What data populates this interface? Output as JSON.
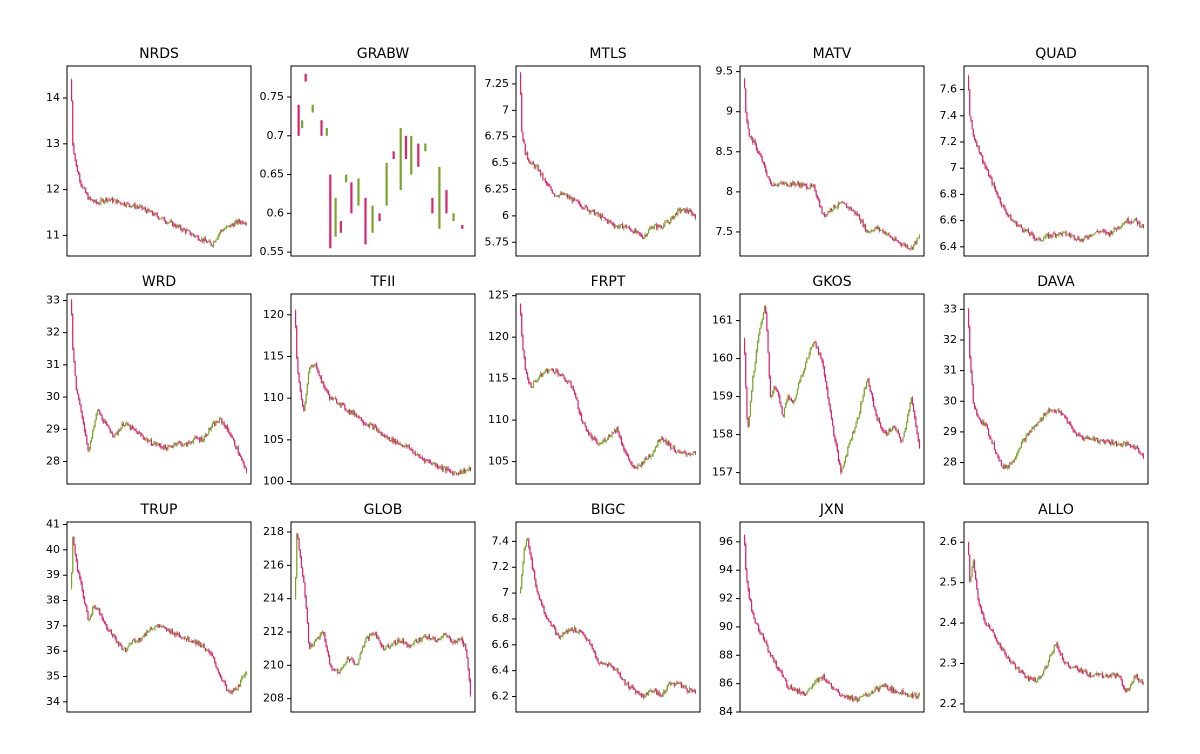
{
  "colors": {
    "up": "#7aa32c",
    "down": "#d6246e",
    "frame": "#000000",
    "background": "#ffffff"
  },
  "chart_data": [
    {
      "type": "candlestick",
      "title": "NRDS",
      "ylim": [
        10.55,
        14.7
      ],
      "yticks": [
        11,
        12,
        13,
        14
      ],
      "series": [
        {
          "x": [
            0,
            0.01,
            0.03,
            0.06,
            0.1,
            0.15,
            0.2,
            0.3,
            0.4,
            0.5,
            0.6,
            0.7,
            0.75,
            0.8,
            0.85,
            0.9,
            0.95,
            1.0
          ],
          "y": [
            14.4,
            13.0,
            12.5,
            12.1,
            11.8,
            11.7,
            11.8,
            11.7,
            11.6,
            11.4,
            11.2,
            11.0,
            10.9,
            10.8,
            11.1,
            11.2,
            11.3,
            11.3
          ]
        }
      ]
    },
    {
      "type": "candlestick",
      "title": "GRABW",
      "ylim": [
        0.545,
        0.79
      ],
      "yticks": [
        0.55,
        0.6,
        0.65,
        0.7,
        0.75
      ],
      "segments": [
        [
          0.02,
          0.7,
          0.74
        ],
        [
          0.04,
          0.71,
          0.72
        ],
        [
          0.06,
          0.77,
          0.78
        ],
        [
          0.1,
          0.73,
          0.74
        ],
        [
          0.15,
          0.7,
          0.72
        ],
        [
          0.18,
          0.7,
          0.71
        ],
        [
          0.2,
          0.555,
          0.65
        ],
        [
          0.23,
          0.57,
          0.62
        ],
        [
          0.26,
          0.575,
          0.59
        ],
        [
          0.29,
          0.64,
          0.65
        ],
        [
          0.32,
          0.6,
          0.64
        ],
        [
          0.36,
          0.61,
          0.645
        ],
        [
          0.4,
          0.56,
          0.62
        ],
        [
          0.44,
          0.575,
          0.61
        ],
        [
          0.48,
          0.59,
          0.6
        ],
        [
          0.52,
          0.61,
          0.665
        ],
        [
          0.56,
          0.67,
          0.68
        ],
        [
          0.6,
          0.63,
          0.71
        ],
        [
          0.63,
          0.67,
          0.7
        ],
        [
          0.66,
          0.65,
          0.7
        ],
        [
          0.7,
          0.66,
          0.69
        ],
        [
          0.74,
          0.68,
          0.69
        ],
        [
          0.78,
          0.6,
          0.62
        ],
        [
          0.82,
          0.58,
          0.66
        ],
        [
          0.86,
          0.6,
          0.63
        ],
        [
          0.9,
          0.59,
          0.6
        ],
        [
          0.95,
          0.58,
          0.585
        ]
      ]
    },
    {
      "type": "candlestick",
      "title": "MTLS",
      "ylim": [
        5.62,
        7.42
      ],
      "yticks": [
        5.75,
        6.0,
        6.25,
        6.5,
        6.75,
        7.0,
        7.25
      ],
      "series": [
        {
          "x": [
            0,
            0.01,
            0.03,
            0.06,
            0.1,
            0.15,
            0.2,
            0.25,
            0.3,
            0.35,
            0.4,
            0.45,
            0.5,
            0.55,
            0.6,
            0.65,
            0.7,
            0.75,
            0.8,
            0.85,
            0.9,
            0.95,
            1.0
          ],
          "y": [
            7.35,
            6.8,
            6.6,
            6.5,
            6.45,
            6.3,
            6.2,
            6.2,
            6.15,
            6.1,
            6.05,
            6.0,
            5.95,
            5.9,
            5.9,
            5.85,
            5.8,
            5.9,
            5.9,
            5.95,
            6.05,
            6.05,
            6.0
          ]
        }
      ]
    },
    {
      "type": "candlestick",
      "title": "MATV",
      "ylim": [
        7.2,
        9.57
      ],
      "yticks": [
        7.5,
        8.0,
        8.5,
        9.0,
        9.5
      ],
      "series": [
        {
          "x": [
            0,
            0.01,
            0.03,
            0.06,
            0.1,
            0.15,
            0.2,
            0.3,
            0.4,
            0.45,
            0.5,
            0.55,
            0.6,
            0.65,
            0.7,
            0.75,
            0.8,
            0.85,
            0.9,
            0.95,
            1.0
          ],
          "y": [
            9.4,
            9.0,
            8.7,
            8.6,
            8.4,
            8.1,
            8.1,
            8.1,
            8.05,
            7.7,
            7.8,
            7.85,
            7.8,
            7.7,
            7.5,
            7.55,
            7.5,
            7.4,
            7.35,
            7.3,
            7.45
          ]
        }
      ]
    },
    {
      "type": "candlestick",
      "title": "QUAD",
      "ylim": [
        6.33,
        7.78
      ],
      "yticks": [
        6.4,
        6.6,
        6.8,
        7.0,
        7.2,
        7.4,
        7.6
      ],
      "series": [
        {
          "x": [
            0,
            0.01,
            0.03,
            0.06,
            0.1,
            0.15,
            0.2,
            0.25,
            0.3,
            0.35,
            0.4,
            0.45,
            0.5,
            0.55,
            0.6,
            0.65,
            0.7,
            0.75,
            0.8,
            0.85,
            0.9,
            0.95,
            1.0
          ],
          "y": [
            7.7,
            7.4,
            7.25,
            7.15,
            7.0,
            6.85,
            6.7,
            6.6,
            6.55,
            6.5,
            6.45,
            6.48,
            6.5,
            6.5,
            6.48,
            6.45,
            6.5,
            6.52,
            6.5,
            6.55,
            6.6,
            6.6,
            6.55
          ]
        }
      ]
    },
    {
      "type": "candlestick",
      "title": "WRD",
      "ylim": [
        27.3,
        33.2
      ],
      "yticks": [
        28,
        29,
        30,
        31,
        32,
        33
      ],
      "series": [
        {
          "x": [
            0,
            0.01,
            0.03,
            0.06,
            0.1,
            0.15,
            0.2,
            0.25,
            0.3,
            0.35,
            0.4,
            0.45,
            0.5,
            0.55,
            0.6,
            0.65,
            0.7,
            0.75,
            0.8,
            0.85,
            0.9,
            0.95,
            1.0
          ],
          "y": [
            33.0,
            31.5,
            30.2,
            29.5,
            28.3,
            29.6,
            29.1,
            28.8,
            29.2,
            29.0,
            28.8,
            28.6,
            28.5,
            28.4,
            28.6,
            28.5,
            28.7,
            28.7,
            29.1,
            29.3,
            28.9,
            28.3,
            27.6
          ]
        }
      ]
    },
    {
      "type": "candlestick",
      "title": "TFII",
      "ylim": [
        99.7,
        122.5
      ],
      "yticks": [
        100,
        105,
        110,
        115,
        120
      ],
      "series": [
        {
          "x": [
            0,
            0.01,
            0.02,
            0.05,
            0.08,
            0.12,
            0.15,
            0.2,
            0.25,
            0.3,
            0.35,
            0.4,
            0.45,
            0.5,
            0.55,
            0.6,
            0.65,
            0.7,
            0.75,
            0.8,
            0.85,
            0.9,
            0.95,
            1.0
          ],
          "y": [
            120.5,
            115.0,
            112.0,
            108.5,
            113.5,
            114.0,
            112.0,
            110.0,
            109.5,
            108.5,
            108.0,
            107.0,
            106.5,
            105.5,
            105.0,
            104.5,
            104.0,
            103.0,
            102.5,
            102.0,
            101.5,
            101.0,
            101.2,
            101.5
          ]
        }
      ]
    },
    {
      "type": "candlestick",
      "title": "FRPT",
      "ylim": [
        102.3,
        125.2
      ],
      "yticks": [
        105,
        110,
        115,
        120,
        125
      ],
      "series": [
        {
          "x": [
            0,
            0.01,
            0.03,
            0.06,
            0.1,
            0.15,
            0.2,
            0.25,
            0.3,
            0.35,
            0.4,
            0.45,
            0.5,
            0.55,
            0.6,
            0.65,
            0.7,
            0.75,
            0.8,
            0.85,
            0.9,
            0.95,
            1.0
          ],
          "y": [
            124.0,
            120.0,
            116.0,
            114.0,
            115.0,
            116.0,
            116.0,
            115.0,
            114.0,
            110.0,
            108.0,
            107.0,
            108.0,
            109.0,
            106.0,
            104.0,
            105.0,
            106.0,
            108.0,
            107.0,
            106.0,
            106.0,
            106.0
          ]
        }
      ]
    },
    {
      "type": "candlestick",
      "title": "GKOS",
      "ylim": [
        156.7,
        161.7
      ],
      "yticks": [
        157,
        158,
        159,
        160,
        161
      ],
      "series": [
        {
          "x": [
            0,
            0.02,
            0.05,
            0.08,
            0.12,
            0.15,
            0.18,
            0.22,
            0.25,
            0.28,
            0.32,
            0.36,
            0.4,
            0.45,
            0.5,
            0.55,
            0.6,
            0.65,
            0.7,
            0.75,
            0.8,
            0.85,
            0.9,
            0.95,
            1.0
          ],
          "y": [
            160.5,
            158.0,
            159.5,
            160.5,
            161.5,
            159.0,
            159.3,
            158.5,
            159.0,
            158.8,
            159.5,
            160.0,
            160.5,
            159.8,
            158.3,
            157.0,
            157.8,
            158.5,
            159.5,
            158.5,
            158.0,
            158.2,
            157.8,
            159.0,
            157.5
          ]
        }
      ]
    },
    {
      "type": "candlestick",
      "title": "DAVA",
      "ylim": [
        27.3,
        33.5
      ],
      "yticks": [
        28,
        29,
        30,
        31,
        32,
        33
      ],
      "series": [
        {
          "x": [
            0,
            0.01,
            0.03,
            0.06,
            0.1,
            0.15,
            0.2,
            0.25,
            0.3,
            0.35,
            0.4,
            0.45,
            0.5,
            0.55,
            0.6,
            0.65,
            0.7,
            0.75,
            0.8,
            0.85,
            0.9,
            0.95,
            1.0
          ],
          "y": [
            33.0,
            31.5,
            30.0,
            29.4,
            29.2,
            28.5,
            27.8,
            28.0,
            28.6,
            29.0,
            29.3,
            29.7,
            29.7,
            29.5,
            29.0,
            28.8,
            28.8,
            28.7,
            28.7,
            28.6,
            28.6,
            28.5,
            28.2
          ]
        }
      ]
    },
    {
      "type": "candlestick",
      "title": "TRUP",
      "ylim": [
        33.6,
        41.1
      ],
      "yticks": [
        34,
        35,
        36,
        37,
        38,
        39,
        40,
        41
      ],
      "series": [
        {
          "x": [
            0,
            0.01,
            0.03,
            0.06,
            0.1,
            0.13,
            0.16,
            0.2,
            0.25,
            0.3,
            0.35,
            0.4,
            0.45,
            0.5,
            0.55,
            0.6,
            0.65,
            0.7,
            0.75,
            0.8,
            0.85,
            0.9,
            0.95,
            1.0
          ],
          "y": [
            38.5,
            40.5,
            39.5,
            38.5,
            37.2,
            37.8,
            37.6,
            37.0,
            36.5,
            36.0,
            36.4,
            36.5,
            36.9,
            37.0,
            36.8,
            36.7,
            36.5,
            36.4,
            36.2,
            35.8,
            35.0,
            34.3,
            34.6,
            35.3
          ]
        }
      ]
    },
    {
      "type": "candlestick",
      "title": "GLOB",
      "ylim": [
        207.2,
        218.6
      ],
      "yticks": [
        208,
        210,
        212,
        214,
        216,
        218
      ],
      "series": [
        {
          "x": [
            0,
            0.01,
            0.03,
            0.06,
            0.08,
            0.12,
            0.16,
            0.2,
            0.25,
            0.3,
            0.35,
            0.4,
            0.45,
            0.5,
            0.55,
            0.6,
            0.65,
            0.7,
            0.75,
            0.8,
            0.85,
            0.9,
            0.94,
            0.97,
            1.0
          ],
          "y": [
            214.0,
            218.0,
            216.5,
            214.0,
            211.0,
            211.5,
            212.0,
            210.0,
            209.5,
            210.5,
            210.0,
            211.5,
            212.0,
            211.0,
            211.3,
            211.5,
            211.2,
            211.5,
            211.7,
            211.5,
            211.8,
            211.4,
            211.6,
            211.0,
            208.0
          ]
        }
      ]
    },
    {
      "type": "candlestick",
      "title": "BIGC",
      "ylim": [
        6.08,
        7.55
      ],
      "yticks": [
        6.2,
        6.4,
        6.6,
        6.8,
        7.0,
        7.2,
        7.4
      ],
      "series": [
        {
          "x": [
            0,
            0.02,
            0.04,
            0.07,
            0.1,
            0.14,
            0.18,
            0.22,
            0.26,
            0.3,
            0.35,
            0.4,
            0.45,
            0.5,
            0.55,
            0.6,
            0.65,
            0.7,
            0.75,
            0.8,
            0.85,
            0.9,
            0.95,
            1.0
          ],
          "y": [
            7.0,
            7.3,
            7.45,
            7.2,
            7.0,
            6.85,
            6.75,
            6.65,
            6.7,
            6.72,
            6.7,
            6.6,
            6.45,
            6.45,
            6.4,
            6.3,
            6.25,
            6.2,
            6.25,
            6.2,
            6.3,
            6.3,
            6.25,
            6.25
          ]
        }
      ]
    },
    {
      "type": "candlestick",
      "title": "JXN",
      "ylim": [
        84.0,
        97.4
      ],
      "yticks": [
        84,
        86,
        88,
        90,
        92,
        94,
        96
      ],
      "series": [
        {
          "x": [
            0,
            0.01,
            0.03,
            0.06,
            0.1,
            0.15,
            0.2,
            0.25,
            0.3,
            0.35,
            0.4,
            0.45,
            0.5,
            0.55,
            0.6,
            0.65,
            0.7,
            0.75,
            0.8,
            0.85,
            0.9,
            0.95,
            1.0
          ],
          "y": [
            96.5,
            94.0,
            92.0,
            90.5,
            89.5,
            88.0,
            87.0,
            85.8,
            85.5,
            85.3,
            86.0,
            86.5,
            85.8,
            85.3,
            85.0,
            84.9,
            85.2,
            85.6,
            85.8,
            85.5,
            85.4,
            85.2,
            85.1
          ]
        }
      ]
    },
    {
      "type": "candlestick",
      "title": "ALLO",
      "ylim": [
        2.18,
        2.65
      ],
      "yticks": [
        2.2,
        2.3,
        2.4,
        2.5,
        2.6
      ],
      "series": [
        {
          "x": [
            0,
            0.01,
            0.03,
            0.06,
            0.1,
            0.15,
            0.2,
            0.25,
            0.3,
            0.35,
            0.4,
            0.45,
            0.5,
            0.55,
            0.6,
            0.65,
            0.7,
            0.75,
            0.8,
            0.85,
            0.9,
            0.95,
            1.0
          ],
          "y": [
            2.6,
            2.5,
            2.55,
            2.45,
            2.4,
            2.37,
            2.33,
            2.3,
            2.28,
            2.26,
            2.26,
            2.3,
            2.35,
            2.3,
            2.29,
            2.28,
            2.27,
            2.27,
            2.27,
            2.27,
            2.23,
            2.27,
            2.25
          ]
        }
      ]
    }
  ]
}
